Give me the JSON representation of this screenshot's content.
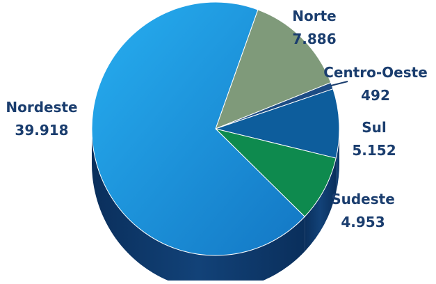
{
  "chart_data": {
    "type": "pie",
    "style": "3d",
    "slices": [
      {
        "label": "Norte",
        "value_label": "7.886",
        "value": 7886,
        "color": "#7f9a7a"
      },
      {
        "label": "Centro-Oeste",
        "value_label": "492",
        "value": 492,
        "color": "#1d4c84"
      },
      {
        "label": "Sul",
        "value_label": "5.152",
        "value": 5152,
        "color": "#0d5d9c"
      },
      {
        "label": "Sudeste",
        "value_label": "4.953",
        "value": 4953,
        "color": "#0e8a4e"
      },
      {
        "label": "Nordeste",
        "value_label": "39.918",
        "value": 39918,
        "color": "#1a95da"
      }
    ],
    "label_color": "#1a3d6e",
    "side_color": "#0e3a6a"
  }
}
